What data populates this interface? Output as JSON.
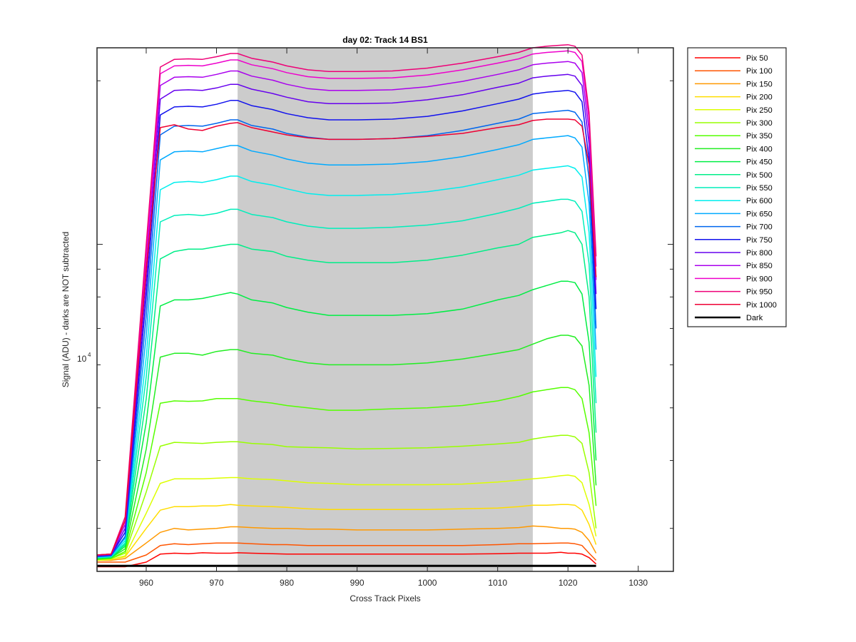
{
  "chart_data": {
    "type": "line",
    "title": "day 02: Track 14  BS1",
    "xlabel": "Cross Track Pixels",
    "ylabel": "Signal (ADU) - darks are NOT subtracted",
    "y_scale": "log",
    "xlim": [
      953,
      1035
    ],
    "ylim": [
      2500,
      23000
    ],
    "x_ticks": [
      960,
      970,
      980,
      990,
      1000,
      1010,
      1020,
      1030
    ],
    "x_tick_labels": [
      "960",
      "970",
      "980",
      "990",
      "1000",
      "1010",
      "1020",
      "1030"
    ],
    "y_major_tick": 10000,
    "y_major_tick_base": "10",
    "y_major_tick_exp": "4",
    "y_minor_ticks": [
      3000,
      4000,
      5000,
      6000,
      7000,
      8000,
      9000,
      20000
    ],
    "shaded_region": {
      "x_start": 973,
      "x_end": 1015,
      "color": "#cccccc"
    },
    "x": [
      953,
      955,
      957,
      960,
      962,
      964,
      966,
      968,
      970,
      972,
      973,
      975,
      978,
      980,
      983,
      986,
      990,
      995,
      1000,
      1005,
      1010,
      1013,
      1015,
      1017,
      1019,
      1020,
      1021,
      1022,
      1023,
      1024
    ],
    "legend_position": "outside-right",
    "series": [
      {
        "name": "Pix 50",
        "color": "#ff0000",
        "values": [
          2550,
          2550,
          2550,
          2600,
          2690,
          2700,
          2695,
          2705,
          2700,
          2700,
          2705,
          2700,
          2695,
          2690,
          2690,
          2690,
          2690,
          2690,
          2690,
          2690,
          2695,
          2700,
          2700,
          2700,
          2710,
          2700,
          2700,
          2690,
          2650,
          2580
        ]
      },
      {
        "name": "Pix 100",
        "color": "#ff5500",
        "values": [
          2600,
          2600,
          2600,
          2680,
          2790,
          2810,
          2800,
          2810,
          2820,
          2820,
          2820,
          2810,
          2800,
          2800,
          2790,
          2790,
          2790,
          2790,
          2790,
          2790,
          2800,
          2810,
          2810,
          2815,
          2820,
          2820,
          2810,
          2790,
          2700,
          2620
        ]
      },
      {
        "name": "Pix 150",
        "color": "#ff9900",
        "values": [
          2620,
          2620,
          2640,
          2820,
          2950,
          3000,
          2980,
          2990,
          3000,
          3020,
          3020,
          3010,
          3000,
          3000,
          2990,
          2990,
          2980,
          2980,
          2980,
          2990,
          3000,
          3010,
          3030,
          3020,
          3000,
          3000,
          2990,
          2950,
          2850,
          2700
        ]
      },
      {
        "name": "Pix 200",
        "color": "#ffdd00",
        "values": [
          2620,
          2630,
          2660,
          3000,
          3240,
          3290,
          3290,
          3300,
          3300,
          3320,
          3310,
          3300,
          3290,
          3280,
          3260,
          3250,
          3250,
          3250,
          3250,
          3260,
          3270,
          3290,
          3310,
          3310,
          3320,
          3320,
          3310,
          3240,
          3050,
          2800
        ]
      },
      {
        "name": "Pix 250",
        "color": "#ddff00",
        "values": [
          2620,
          2630,
          2670,
          3200,
          3630,
          3700,
          3700,
          3700,
          3710,
          3720,
          3720,
          3700,
          3690,
          3670,
          3640,
          3630,
          3610,
          3610,
          3610,
          3620,
          3650,
          3680,
          3700,
          3720,
          3750,
          3760,
          3740,
          3640,
          3320,
          2900
        ]
      },
      {
        "name": "Pix 300",
        "color": "#99ff00",
        "values": [
          2630,
          2640,
          2700,
          3500,
          4250,
          4320,
          4310,
          4300,
          4320,
          4330,
          4330,
          4300,
          4280,
          4240,
          4230,
          4220,
          4200,
          4210,
          4220,
          4250,
          4290,
          4320,
          4380,
          4420,
          4450,
          4450,
          4420,
          4300,
          3800,
          3000
        ]
      },
      {
        "name": "Pix 350",
        "color": "#55ff00",
        "values": [
          2630,
          2640,
          2720,
          3800,
          5100,
          5150,
          5140,
          5150,
          5200,
          5200,
          5200,
          5150,
          5100,
          5050,
          5000,
          4950,
          4950,
          4980,
          5000,
          5050,
          5150,
          5250,
          5350,
          5400,
          5450,
          5450,
          5400,
          5200,
          4500,
          3300
        ]
      },
      {
        "name": "Pix 400",
        "color": "#22ee22",
        "values": [
          2640,
          2650,
          2750,
          4200,
          6200,
          6300,
          6300,
          6250,
          6350,
          6400,
          6400,
          6300,
          6250,
          6150,
          6050,
          6000,
          6000,
          6000,
          6050,
          6150,
          6300,
          6400,
          6550,
          6700,
          6800,
          6800,
          6750,
          6500,
          5500,
          3600
        ]
      },
      {
        "name": "Pix 450",
        "color": "#00ee44",
        "values": [
          2640,
          2650,
          2780,
          4700,
          7700,
          7900,
          7900,
          7950,
          8050,
          8150,
          8100,
          7900,
          7800,
          7650,
          7500,
          7400,
          7400,
          7400,
          7450,
          7600,
          7900,
          8050,
          8250,
          8400,
          8550,
          8550,
          8500,
          8100,
          6600,
          4000
        ]
      },
      {
        "name": "Pix 500",
        "color": "#00ee88",
        "values": [
          2650,
          2660,
          2800,
          5200,
          9400,
          9700,
          9800,
          9800,
          9900,
          10000,
          10000,
          9800,
          9700,
          9500,
          9350,
          9250,
          9250,
          9250,
          9350,
          9550,
          9850,
          10000,
          10300,
          10400,
          10500,
          10600,
          10500,
          10000,
          8000,
          4500
        ]
      },
      {
        "name": "Pix 550",
        "color": "#00eebb",
        "values": [
          2650,
          2660,
          2820,
          5700,
          11000,
          11300,
          11350,
          11300,
          11400,
          11600,
          11600,
          11350,
          11200,
          11000,
          10800,
          10700,
          10700,
          10750,
          10850,
          11050,
          11400,
          11650,
          11900,
          12000,
          12100,
          12100,
          12000,
          11500,
          9200,
          5100
        ]
      },
      {
        "name": "Pix 600",
        "color": "#00eeee",
        "values": [
          2650,
          2660,
          2850,
          6200,
          12600,
          13000,
          13050,
          13000,
          13150,
          13350,
          13350,
          13050,
          12850,
          12650,
          12400,
          12300,
          12300,
          12350,
          12500,
          12750,
          13150,
          13400,
          13700,
          13800,
          13900,
          13950,
          13800,
          13300,
          10500,
          5700
        ]
      },
      {
        "name": "Pix 650",
        "color": "#00aaff",
        "values": [
          2660,
          2670,
          2880,
          6800,
          14300,
          14800,
          14850,
          14800,
          15000,
          15200,
          15200,
          14850,
          14600,
          14350,
          14100,
          14000,
          14000,
          14050,
          14200,
          14500,
          14950,
          15250,
          15600,
          15700,
          15800,
          15850,
          15700,
          15100,
          11900,
          6400
        ]
      },
      {
        "name": "Pix 700",
        "color": "#0066ee",
        "values": [
          2660,
          2670,
          2900,
          7400,
          15900,
          16500,
          16550,
          16500,
          16700,
          16950,
          16950,
          16550,
          16300,
          16000,
          15750,
          15600,
          15600,
          15650,
          15850,
          16200,
          16700,
          17000,
          17400,
          17500,
          17600,
          17650,
          17500,
          16800,
          13200,
          7000
        ]
      },
      {
        "name": "Pix 750",
        "color": "#1111ee",
        "values": [
          2670,
          2680,
          2950,
          8000,
          17300,
          17900,
          17950,
          17900,
          18100,
          18400,
          18400,
          18000,
          17700,
          17400,
          17100,
          16950,
          16950,
          17000,
          17200,
          17600,
          18150,
          18500,
          18900,
          19050,
          19150,
          19200,
          19050,
          18300,
          14300,
          7600
        ]
      },
      {
        "name": "Pix 800",
        "color": "#6600ee",
        "values": [
          2670,
          2680,
          3000,
          8500,
          18500,
          19200,
          19250,
          19200,
          19400,
          19700,
          19700,
          19300,
          18950,
          18650,
          18300,
          18150,
          18150,
          18200,
          18450,
          18850,
          19450,
          19800,
          20250,
          20400,
          20500,
          20550,
          20400,
          19600,
          15300,
          8100
        ]
      },
      {
        "name": "Pix 850",
        "color": "#aa00ee",
        "values": [
          2680,
          2690,
          3050,
          9000,
          19600,
          20300,
          20350,
          20300,
          20550,
          20850,
          20850,
          20400,
          20050,
          19700,
          19350,
          19200,
          19200,
          19250,
          19500,
          19950,
          20550,
          20950,
          21400,
          21550,
          21650,
          21700,
          21550,
          20700,
          16200,
          8600
        ]
      },
      {
        "name": "Pix 900",
        "color": "#ee00cc",
        "values": [
          2680,
          2690,
          3100,
          9500,
          20600,
          21300,
          21350,
          21300,
          21550,
          21850,
          21850,
          21400,
          21050,
          20700,
          20350,
          20200,
          20200,
          20250,
          20500,
          20950,
          21550,
          21950,
          22400,
          22550,
          22650,
          22700,
          22550,
          21700,
          17000,
          9100
        ]
      },
      {
        "name": "Pix 950",
        "color": "#ee0077",
        "values": [
          2680,
          2690,
          3150,
          10000,
          21200,
          21900,
          21950,
          21900,
          22150,
          22450,
          22450,
          22000,
          21650,
          21300,
          20950,
          20800,
          20800,
          20850,
          21100,
          21550,
          22150,
          22550,
          23000,
          23150,
          23250,
          23300,
          23150,
          22300,
          17500,
          9500
        ]
      },
      {
        "name": "Pix 1000",
        "color": "#ee0033",
        "values": [
          2680,
          2690,
          3100,
          9000,
          16400,
          16600,
          16300,
          16200,
          16500,
          16700,
          16750,
          16400,
          16100,
          15900,
          15700,
          15600,
          15600,
          15650,
          15800,
          16000,
          16400,
          16600,
          16900,
          17000,
          17000,
          17000,
          16950,
          16500,
          14000,
          8700
        ]
      },
      {
        "name": "Dark",
        "color": "#000000",
        "values": [
          2560,
          2560,
          2560,
          2560,
          2560,
          2560,
          2560,
          2560,
          2560,
          2560,
          2560,
          2560,
          2560,
          2560,
          2560,
          2560,
          2560,
          2560,
          2560,
          2560,
          2560,
          2560,
          2560,
          2560,
          2560,
          2560,
          2560,
          2560,
          2560,
          2560
        ]
      }
    ]
  }
}
